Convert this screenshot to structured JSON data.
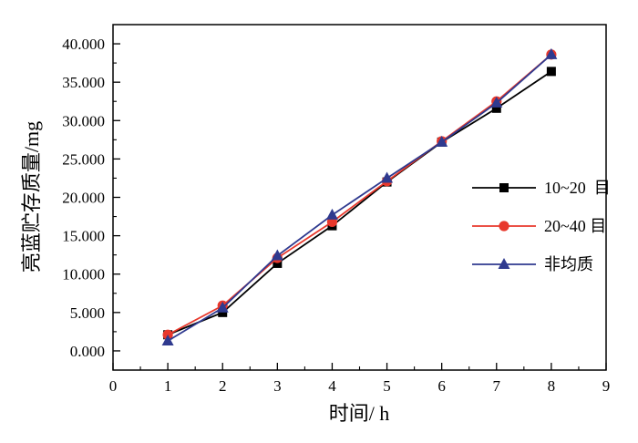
{
  "chart_data": {
    "type": "line",
    "xlabel": "时间/ h",
    "ylabel": "亮蓝贮存质量/mg",
    "xlim": [
      0,
      9
    ],
    "ylim": [
      -2.5,
      42.5
    ],
    "x_ticks": [
      "0",
      "1",
      "2",
      "3",
      "4",
      "5",
      "6",
      "7",
      "8",
      "9"
    ],
    "y_ticks": [
      "0.000",
      "5.000",
      "10.000",
      "15.000",
      "20.000",
      "25.000",
      "30.000",
      "35.000",
      "40.000"
    ],
    "x": [
      1,
      2,
      3,
      4,
      5,
      6,
      7,
      8
    ],
    "legend_position": "right",
    "grid": false,
    "series": [
      {
        "name": "10~20  目",
        "marker": "square",
        "color": "#000000",
        "marker_color": "#000000",
        "values": [
          2.1,
          5.0,
          11.4,
          16.3,
          22.0,
          27.2,
          31.6,
          36.4
        ]
      },
      {
        "name": "20~40 目",
        "marker": "circle",
        "color": "#e8382c",
        "marker_color": "#e8382c",
        "values": [
          2.1,
          5.9,
          12.1,
          16.8,
          22.1,
          27.3,
          32.5,
          38.6
        ]
      },
      {
        "name": "非均质",
        "marker": "triangle",
        "color": "#2f3a8f",
        "marker_color": "#2f3a8f",
        "values": [
          1.3,
          5.6,
          12.4,
          17.7,
          22.5,
          27.2,
          32.3,
          38.6
        ]
      }
    ]
  }
}
